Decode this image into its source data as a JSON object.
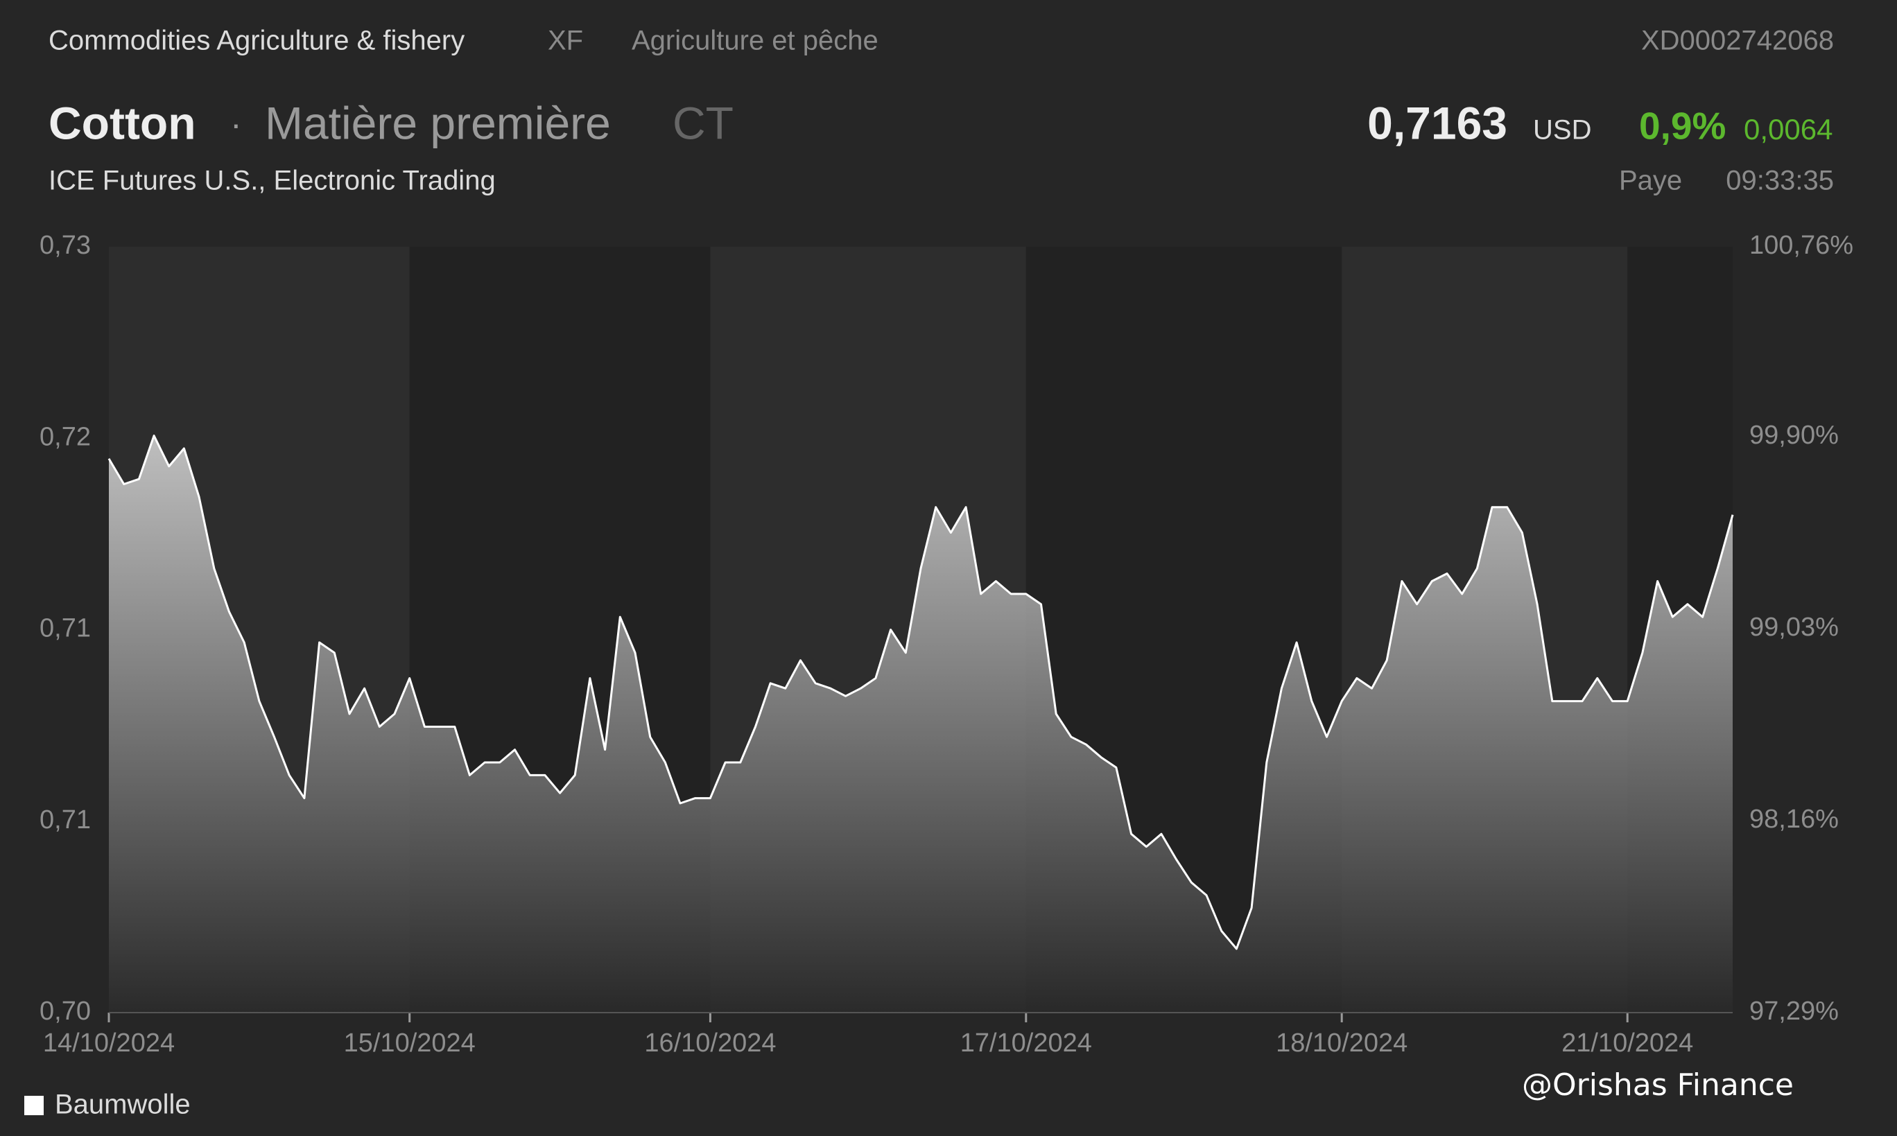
{
  "header": {
    "category": "Commodities Agriculture & fishery",
    "code": "XF",
    "category_fr": "Agriculture et pêche",
    "isin": "XD0002742068",
    "name": "Cotton",
    "separator": "·",
    "type": "Matière première",
    "symbol": "CT",
    "price": "0,7163",
    "currency": "USD",
    "change_pct": "0,9%",
    "change_abs": "0,0064",
    "exchange": "ICE Futures U.S., Electronic Trading",
    "country": "Paye",
    "time": "09:33:35"
  },
  "watermark": "@Orishas Finance",
  "chart_data": {
    "type": "area",
    "categories": [
      "14/10/2024",
      null,
      null,
      null,
      null,
      null,
      null,
      null,
      null,
      null,
      null,
      null,
      null,
      null,
      null,
      null,
      null,
      null,
      null,
      null,
      "15/10/2024",
      null,
      null,
      null,
      null,
      null,
      null,
      null,
      null,
      null,
      null,
      null,
      null,
      null,
      null,
      null,
      null,
      null,
      null,
      null,
      "16/10/2024",
      null,
      null,
      null,
      null,
      null,
      null,
      null,
      null,
      null,
      null,
      null,
      null,
      null,
      null,
      null,
      null,
      null,
      null,
      null,
      null,
      "17/10/2024",
      null,
      null,
      null,
      null,
      null,
      null,
      null,
      null,
      null,
      null,
      null,
      null,
      null,
      null,
      null,
      null,
      null,
      null,
      null,
      null,
      "18/10/2024",
      null,
      null,
      null,
      null,
      null,
      null,
      null,
      null,
      null,
      null,
      null,
      null,
      null,
      null,
      null,
      null,
      null,
      null,
      "21/10/2024",
      null,
      null,
      null,
      null,
      null,
      null,
      null
    ],
    "series": [
      {
        "name": "Baumwolle",
        "color": "#ffffff",
        "values": [
          0.7217,
          0.7207,
          0.7209,
          0.7226,
          0.7214,
          0.7221,
          0.7202,
          0.7174,
          0.7157,
          0.7145,
          0.7122,
          0.7108,
          0.7093,
          0.7084,
          0.7145,
          0.7141,
          0.7117,
          0.7127,
          0.7112,
          0.7117,
          0.7131,
          0.7112,
          0.7112,
          0.7112,
          0.7093,
          0.7098,
          0.7098,
          0.7103,
          0.7093,
          0.7093,
          0.7086,
          0.7093,
          0.7131,
          0.7103,
          0.7155,
          0.7141,
          0.7108,
          0.7098,
          0.7082,
          0.7084,
          0.7084,
          0.7098,
          0.7098,
          0.7112,
          0.7129,
          0.7127,
          0.7138,
          0.7129,
          0.7127,
          0.7124,
          0.7127,
          0.7131,
          0.715,
          0.7141,
          0.7174,
          0.7198,
          0.7188,
          0.7198,
          0.7164,
          0.7169,
          0.7164,
          0.7164,
          0.716,
          0.7117,
          0.7108,
          0.7105,
          0.71,
          0.7096,
          0.707,
          0.7065,
          0.707,
          0.706,
          0.7051,
          0.7046,
          0.7032,
          0.7025,
          0.7041,
          0.7098,
          0.7127,
          0.7145,
          0.7122,
          0.7108,
          0.7122,
          0.7131,
          0.7127,
          0.7138,
          0.7169,
          0.716,
          0.7169,
          0.7172,
          0.7164,
          0.7174,
          0.7198,
          0.7198,
          0.7188,
          0.716,
          0.7122,
          0.7122,
          0.7122,
          0.7131,
          0.7122,
          0.7122,
          0.7141,
          0.7169,
          0.7155,
          0.716,
          0.7155,
          0.7174,
          0.7195
        ]
      }
    ],
    "ylim": [
      0.7,
      0.73
    ],
    "yticks": [
      {
        "value": 0.7,
        "label": "0,70"
      },
      {
        "value": 0.7075,
        "label": "0,71"
      },
      {
        "value": 0.715,
        "label": "0,71"
      },
      {
        "value": 0.7225,
        "label": "0,72"
      },
      {
        "value": 0.73,
        "label": "0,73"
      }
    ],
    "y2lim": [
      97.29,
      100.76
    ],
    "y2ticks": [
      {
        "value": 97.29,
        "label": "97,29%"
      },
      {
        "value": 98.16,
        "label": "98,16%"
      },
      {
        "value": 99.03,
        "label": "99,03%"
      },
      {
        "value": 99.9,
        "label": "99,90%"
      },
      {
        "value": 100.76,
        "label": "100,76%"
      }
    ]
  }
}
